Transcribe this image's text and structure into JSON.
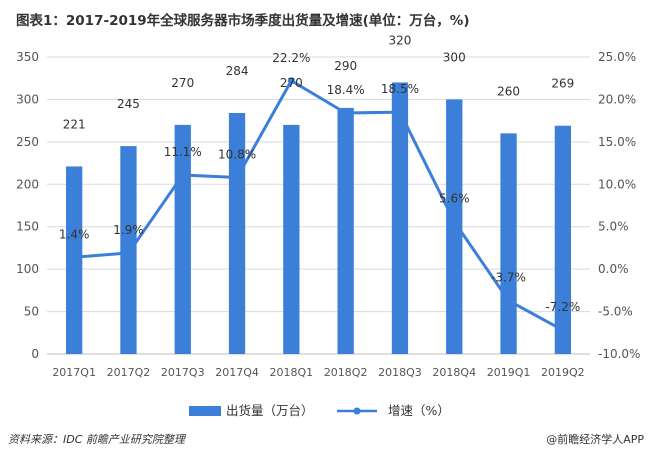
{
  "title": "图表1：2017-2019年全球服务器市场季度出货量及增速(单位：万台，%)",
  "source": "资料来源：IDC 前瞻产业研究院整理",
  "brand": "@前瞻经济学人APP",
  "colors": {
    "bar": "#3b7fd9",
    "line": "#3b7fd9",
    "grid": "#d9d9d9",
    "axis": "#bfbfbf",
    "marker_fill": "#3b7fd9"
  },
  "chart_data": {
    "type": "bar",
    "title": "图表1：2017-2019年全球服务器市场季度出货量及增速(单位：万台，%)",
    "categories": [
      "2017Q1",
      "2017Q2",
      "2017Q3",
      "2017Q4",
      "2018Q1",
      "2018Q2",
      "2018Q3",
      "2018Q4",
      "2019Q1",
      "2019Q2"
    ],
    "series": [
      {
        "name": "出货量（万台）",
        "type": "bar",
        "axis": "left",
        "values": [
          221,
          245,
          270,
          284,
          270,
          290,
          320,
          300,
          260,
          269
        ],
        "labels": [
          "221",
          "245",
          "270",
          "284",
          "270",
          "290",
          "320",
          "300",
          "260",
          "269"
        ]
      },
      {
        "name": "增速（%）",
        "type": "line",
        "axis": "right",
        "values": [
          1.4,
          1.9,
          11.1,
          10.8,
          22.2,
          18.4,
          18.5,
          5.6,
          -3.7,
          -7.2
        ],
        "labels": [
          "1.4%",
          "1.9%",
          "11.1%",
          "10.8%",
          "22.2%",
          "18.4%",
          "18.5%",
          "5.6%",
          "-3.7%",
          "-7.2%"
        ]
      }
    ],
    "y_left": {
      "range": [
        0,
        350
      ],
      "ticks": [
        0,
        50,
        100,
        150,
        200,
        250,
        300,
        350
      ],
      "tick_labels": [
        "0",
        "50",
        "100",
        "150",
        "200",
        "250",
        "300",
        "350"
      ]
    },
    "y_right": {
      "range": [
        -10,
        25
      ],
      "ticks": [
        -10,
        -5,
        0,
        5,
        10,
        15,
        20,
        25
      ],
      "tick_labels": [
        "-10.0%",
        "-5.0%",
        "0.0%",
        "5.0%",
        "10.0%",
        "15.0%",
        "20.0%",
        "25.0%"
      ]
    },
    "grid": true,
    "legend_position": "bottom"
  }
}
